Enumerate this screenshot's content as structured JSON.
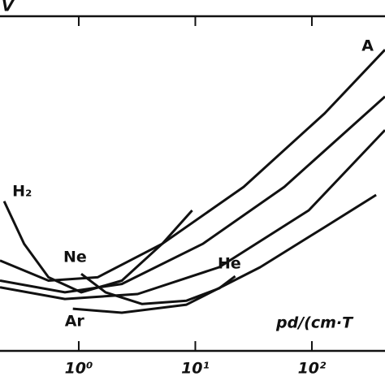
{
  "chart_data": {
    "type": "line",
    "y_label": "V",
    "x_label": "pd/(cm·T",
    "log_x": true,
    "xlim": [
      0.211,
      424
    ],
    "ylim": [
      0,
      100
    ],
    "xticks": [
      {
        "value": 1,
        "label": "10⁰"
      },
      {
        "value": 10,
        "label": "10¹"
      },
      {
        "value": 100,
        "label": "10²"
      }
    ],
    "color": "#111111",
    "series": [
      {
        "name": "A",
        "x": [
          0.211,
          0.55,
          1.45,
          5.2,
          26,
          129,
          424
        ],
        "values": [
          27,
          21,
          22,
          32,
          49,
          71,
          90
        ]
      },
      {
        "x": [
          0.211,
          0.76,
          2.34,
          11.6,
          58,
          424
        ],
        "values": [
          21,
          17.5,
          20,
          32,
          49,
          76
        ]
      },
      {
        "x": [
          0.211,
          0.76,
          3.2,
          16,
          94,
          424
        ],
        "values": [
          19,
          15.5,
          17,
          25,
          42,
          66
        ]
      },
      {
        "name": "H₂",
        "x": [
          0.229,
          0.34,
          0.55,
          1.05,
          2.34,
          5.2,
          9.4
        ],
        "values": [
          44.7,
          32,
          22,
          17.5,
          21,
          32,
          42
        ]
      },
      {
        "name": "Ne",
        "x": [
          1.05,
          1.7,
          3.5,
          8.4,
          16,
          22
        ],
        "values": [
          23,
          17.5,
          14,
          15,
          18.7,
          22.3
        ]
      },
      {
        "name": "Ar",
        "x": [
          0.89,
          2.34,
          8.4,
          36,
          129,
          356
        ],
        "values": [
          12.6,
          11.4,
          13.8,
          25,
          37,
          46.6
        ]
      }
    ],
    "labels": [
      "He"
    ]
  }
}
